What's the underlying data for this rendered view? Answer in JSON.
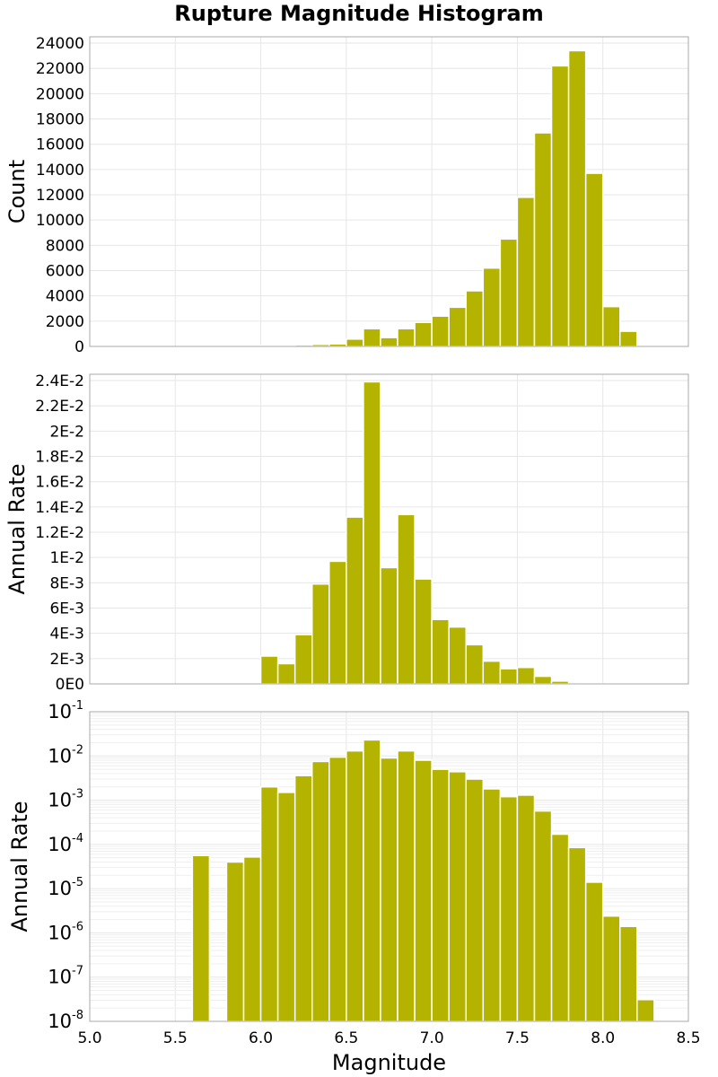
{
  "title": "Rupture Magnitude Histogram",
  "colors": {
    "bar": "#b3b300",
    "frame": "#a8a8a8",
    "grid": "#e6e6e6"
  },
  "chart_data": [
    {
      "type": "bar",
      "panel": "count",
      "ylabel": "Count",
      "xlim": [
        5.0,
        8.5
      ],
      "ylim": [
        0,
        24500
      ],
      "yticks": [
        0,
        2000,
        4000,
        6000,
        8000,
        10000,
        12000,
        14000,
        16000,
        18000,
        20000,
        22000,
        24000
      ],
      "ytick_labels": [
        "0",
        "2000",
        "4000",
        "6000",
        "8000",
        "10000",
        "12000",
        "14000",
        "16000",
        "18000",
        "20000",
        "22000",
        "24000"
      ],
      "bin_width": 0.1,
      "x": [
        5.65,
        5.85,
        5.95,
        6.05,
        6.15,
        6.25,
        6.35,
        6.45,
        6.55,
        6.65,
        6.75,
        6.85,
        6.95,
        7.05,
        7.15,
        7.25,
        7.35,
        7.45,
        7.55,
        7.65,
        7.75,
        7.85,
        7.95,
        8.05,
        8.15,
        8.25
      ],
      "values": [
        10,
        15,
        20,
        80,
        100,
        120,
        160,
        200,
        580,
        1400,
        700,
        1400,
        1900,
        2400,
        3100,
        4400,
        6200,
        8500,
        11800,
        16900,
        22200,
        23400,
        13700,
        3150,
        1200,
        50
      ]
    },
    {
      "type": "bar",
      "panel": "rate-linear",
      "ylabel": "Annual Rate",
      "xlim": [
        5.0,
        8.5
      ],
      "ylim": [
        0,
        0.0245
      ],
      "yticks": [
        0,
        0.002,
        0.004,
        0.006,
        0.008,
        0.01,
        0.012,
        0.014,
        0.016,
        0.018,
        0.02,
        0.022,
        0.024
      ],
      "ytick_labels": [
        "0E0",
        "2E-3",
        "4E-3",
        "6E-3",
        "8E-3",
        "1E-2",
        "1.2E-2",
        "1.4E-2",
        "1.6E-2",
        "1.8E-2",
        "2E-2",
        "2.2E-2",
        "2.4E-2"
      ],
      "bin_width": 0.1,
      "x": [
        5.65,
        5.85,
        5.95,
        6.05,
        6.15,
        6.25,
        6.35,
        6.45,
        6.55,
        6.65,
        6.75,
        6.85,
        6.95,
        7.05,
        7.15,
        7.25,
        7.35,
        7.45,
        7.55,
        7.65,
        7.75,
        7.85,
        7.95,
        8.05,
        8.15,
        8.25
      ],
      "values": [
        6e-05,
        4e-05,
        5e-05,
        0.0022,
        0.0016,
        0.0039,
        0.0079,
        0.0097,
        0.0132,
        0.0239,
        0.0092,
        0.0134,
        0.0083,
        0.0051,
        0.0045,
        0.0031,
        0.0018,
        0.0012,
        0.0013,
        0.0006,
        0.00022,
        9e-05,
        1e-05,
        2.4e-06,
        1.4e-06,
        3e-08
      ]
    },
    {
      "type": "bar",
      "panel": "rate-log",
      "ylabel": "Annual Rate",
      "xlabel": "Magnitude",
      "xlim": [
        5.0,
        8.5
      ],
      "xticks": [
        5.0,
        5.5,
        6.0,
        6.5,
        7.0,
        7.5,
        8.0,
        8.5
      ],
      "xtick_labels": [
        "5.0",
        "5.5",
        "6.0",
        "6.5",
        "7.0",
        "7.5",
        "8.0",
        "8.5"
      ],
      "yscale": "log",
      "ylim": [
        1e-08,
        0.1
      ],
      "ytick_exponents": [
        "-8",
        "-7",
        "-6",
        "-5",
        "-4",
        "-3",
        "-2",
        "-1"
      ],
      "ytick_base": "10",
      "bin_width": 0.1,
      "x": [
        5.65,
        5.85,
        5.95,
        6.05,
        6.15,
        6.25,
        6.35,
        6.45,
        6.55,
        6.65,
        6.75,
        6.85,
        6.95,
        7.05,
        7.15,
        7.25,
        7.35,
        7.45,
        7.55,
        7.65,
        7.75,
        7.85,
        7.95,
        8.05,
        8.15,
        8.25
      ],
      "values": [
        5.6e-05,
        4e-05,
        5.2e-05,
        0.002,
        0.0015,
        0.0036,
        0.0075,
        0.0094,
        0.013,
        0.023,
        0.009,
        0.013,
        0.008,
        0.005,
        0.0044,
        0.003,
        0.0018,
        0.0012,
        0.0013,
        0.00057,
        0.00017,
        8.5e-05,
        1.4e-05,
        2.4e-06,
        1.4e-06,
        3.1e-08
      ]
    }
  ]
}
